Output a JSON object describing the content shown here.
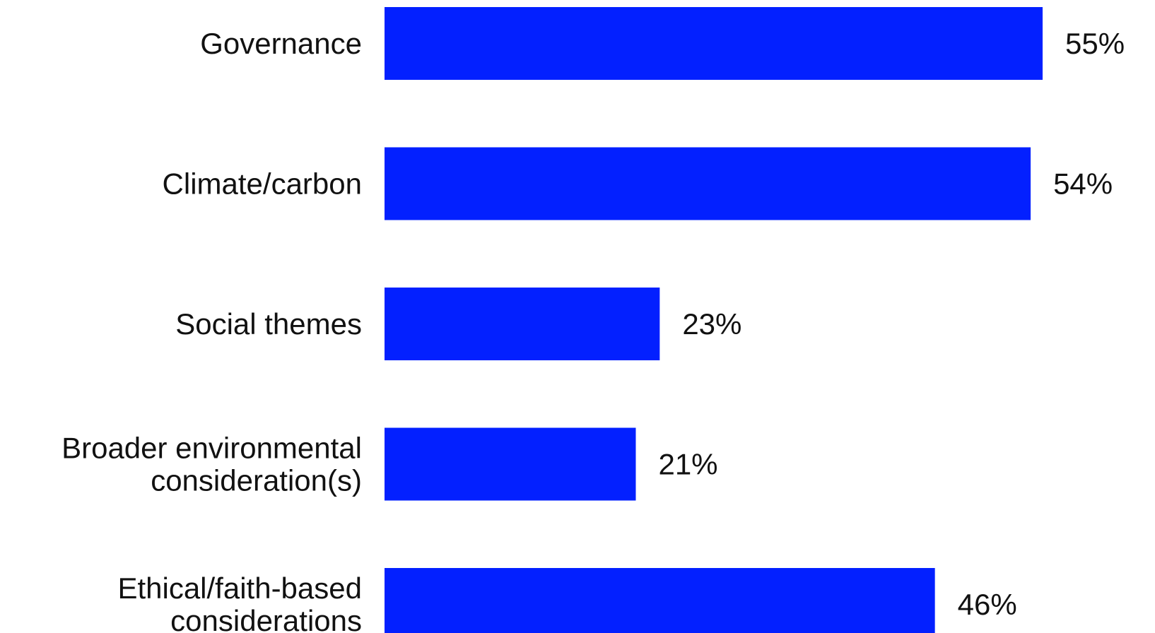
{
  "chart_data": {
    "type": "bar",
    "orientation": "horizontal",
    "categories": [
      [
        "Governance"
      ],
      [
        "Climate/carbon"
      ],
      [
        "Social themes"
      ],
      [
        "Broader environmental",
        "consideration(s)"
      ],
      [
        "Ethical/faith-based",
        "considerations"
      ]
    ],
    "values": [
      55,
      54,
      23,
      21,
      46
    ],
    "value_labels": [
      "55%",
      "54%",
      "23%",
      "21%",
      "46%"
    ],
    "bar_color": "#0320FF",
    "title": "",
    "xlabel": "",
    "ylabel": "",
    "xlim": [
      0,
      55
    ],
    "grid": false,
    "legend": "none"
  }
}
